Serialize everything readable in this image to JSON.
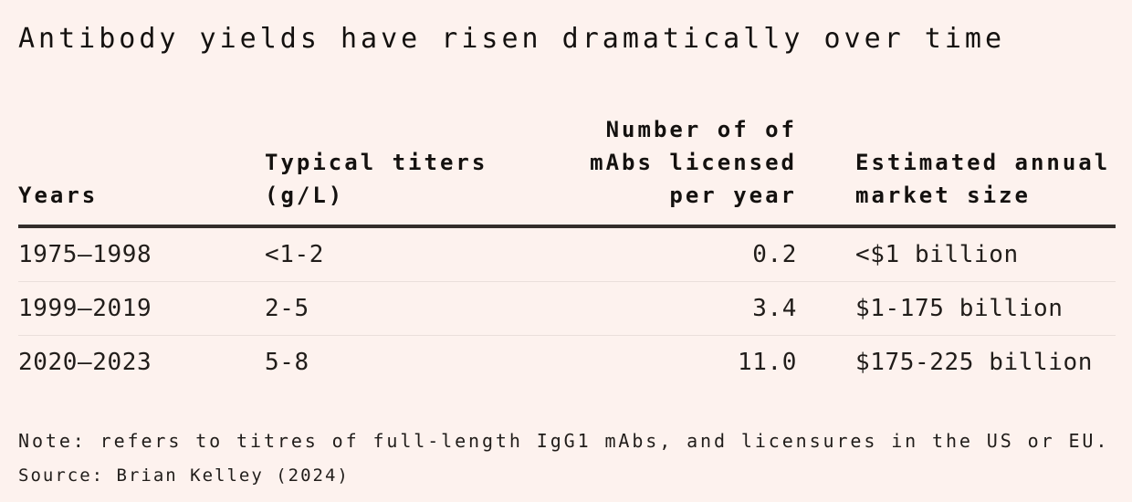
{
  "colors": {
    "background": "#fdf2ee",
    "text": "#211d1a",
    "heading": "#14110f",
    "header_rule": "#332e2b",
    "row_divider": "#eadfdb"
  },
  "chart_data": {
    "type": "table",
    "title": "Antibody yields have risen dramatically over time",
    "columns": [
      "Years",
      "Typical titers (g/L)",
      "Number of of mAbs licensed per year",
      "Estimated annual market size"
    ],
    "header_display": [
      "Years",
      "Typical titers\n(g/L)",
      "Number of of\nmAbs licensed\nper year",
      "Estimated annual\nmarket size"
    ],
    "rows": [
      [
        "1975–1998",
        "<1-2",
        "0.2",
        "<$1 billion"
      ],
      [
        "1999–2019",
        "2-5",
        "3.4",
        "$1-175 billion"
      ],
      [
        "2020–2023",
        "5-8",
        "11.0",
        "$175-225 billion"
      ]
    ],
    "note": "Note: refers to titres of full-length IgG1 mAbs, and licensures in the US or EU.",
    "source": "Source: Brian Kelley (2024)"
  }
}
